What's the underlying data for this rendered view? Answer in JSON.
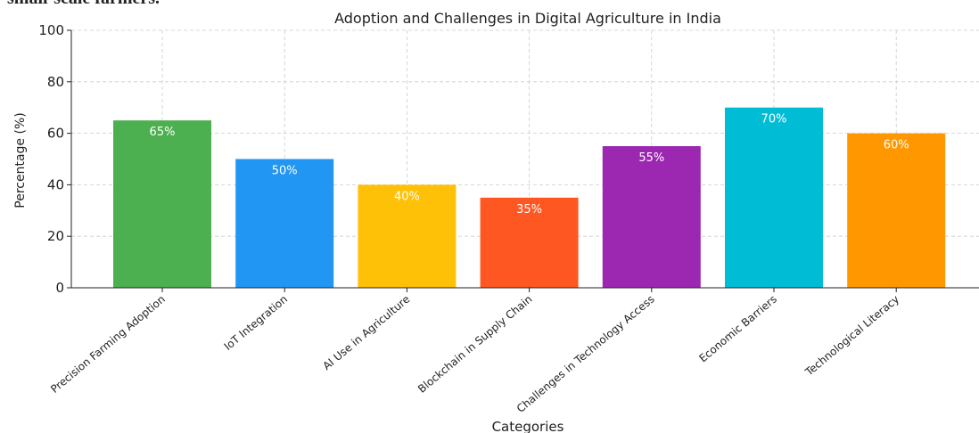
{
  "document_text": "small-scale farmers.",
  "chart_data": {
    "type": "bar",
    "title": "Adoption and Challenges in Digital Agriculture in India",
    "x_label": "Categories",
    "y_label": "Percentage (%)",
    "categories": [
      "Precision Farming Adoption",
      "IoT Integration",
      "AI Use in Agriculture",
      "Blockchain in Supply Chain",
      "Challenges in Technology Access",
      "Economic Barriers",
      "Technological Literacy"
    ],
    "values": [
      65,
      50,
      40,
      35,
      55,
      70,
      60
    ],
    "value_labels": [
      "65%",
      "50%",
      "40%",
      "35%",
      "55%",
      "70%",
      "60%"
    ],
    "colors": [
      "#4caf50",
      "#2196f3",
      "#ffc107",
      "#ff5722",
      "#9c27b0",
      "#00bcd4",
      "#ff9800"
    ],
    "ylim": [
      0,
      100
    ],
    "yticks": [
      0,
      20,
      40,
      60,
      80,
      100
    ],
    "grid": true
  }
}
